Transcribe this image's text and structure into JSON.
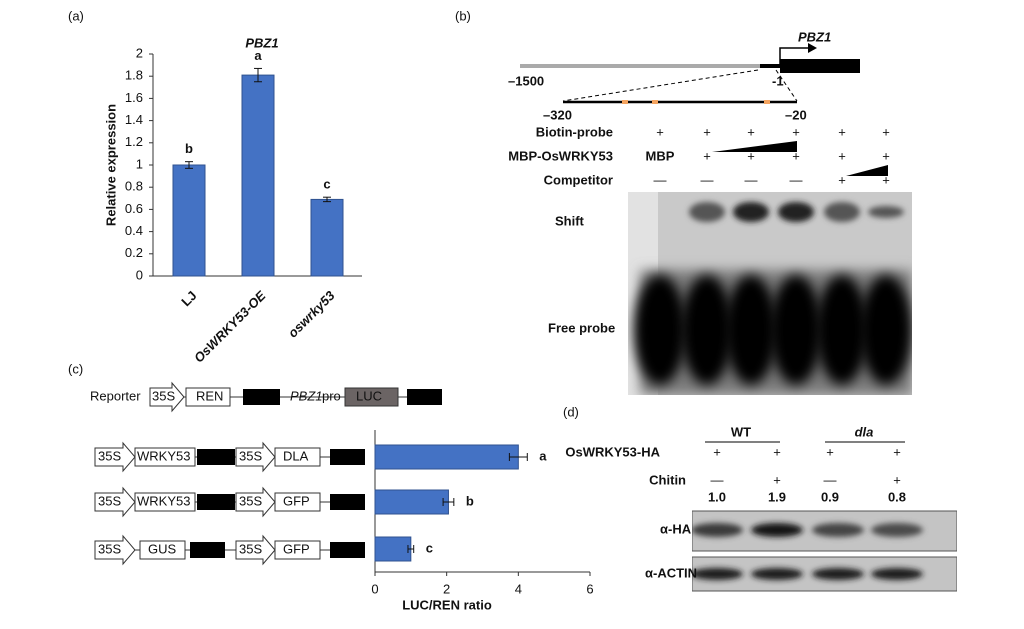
{
  "panel_labels": [
    "(a)",
    "(b)",
    "(c)",
    "(d)"
  ],
  "chart_data": [
    {
      "type": "bar",
      "title": "PBZ1",
      "y_label": "Relative expression",
      "categories": [
        "LJ",
        "OsWRKY53-OE",
        "oswrky53"
      ],
      "values": [
        1.0,
        1.81,
        0.69
      ],
      "errors": [
        0.03,
        0.06,
        0.02
      ],
      "annotations": [
        "b",
        "a",
        "c"
      ],
      "color": "#4472c4",
      "ylim": [
        0,
        2
      ],
      "yticks": [
        0,
        0.2,
        0.4,
        0.6,
        0.8,
        1,
        1.2,
        1.4,
        1.6,
        1.8,
        2
      ]
    },
    {
      "type": "hbar",
      "x_label": "LUC/REN ratio",
      "categories": [
        null,
        null,
        null
      ],
      "values": [
        4.0,
        2.05,
        1.0
      ],
      "errors": [
        0.25,
        0.15,
        0.08
      ],
      "annotations": [
        "a",
        "b",
        "c"
      ],
      "color": "#4472c4",
      "xlim": [
        0,
        6
      ],
      "xticks": [
        0,
        2,
        4,
        6
      ]
    }
  ],
  "emsa": {
    "gene": "PBZ1",
    "positions": [
      "–1500",
      "-1",
      "–320",
      "–20"
    ],
    "rows": [
      {
        "label": "Biotin-probe",
        "lanes": [
          "+",
          "+",
          "+",
          "+",
          "+",
          "+"
        ]
      },
      {
        "label": "MBP-OsWRKY53",
        "lanes": [
          "MBP",
          "+",
          "+",
          "+",
          "+",
          "+"
        ]
      },
      {
        "label": "Competitor",
        "lanes": [
          "—",
          "—",
          "—",
          "—",
          "+",
          "+"
        ]
      }
    ],
    "bands": [
      "Shift",
      "Free probe"
    ]
  },
  "reporter": {
    "label": "Reporter",
    "parts": [
      "35S",
      "REN",
      "PBZ1",
      "pro",
      "LUC"
    ]
  },
  "effectors": [
    [
      "35S",
      "WRKY53",
      "35S",
      "DLA"
    ],
    [
      "35S",
      "WRKY53",
      "35S",
      "GFP"
    ],
    [
      "35S",
      "GUS",
      "35S",
      "GFP"
    ]
  ],
  "western": {
    "groups": [
      "WT",
      "dla"
    ],
    "rows": [
      {
        "label": "OsWRKY53-HA",
        "lanes": [
          "+",
          "+",
          "+",
          "+"
        ]
      },
      {
        "label": "Chitin",
        "lanes": [
          "—",
          "+",
          "—",
          "+"
        ]
      }
    ],
    "quantification": [
      "1.0",
      "1.9",
      "0.9",
      "0.8"
    ],
    "blots": [
      "α-HA",
      "α-ACTIN"
    ]
  }
}
